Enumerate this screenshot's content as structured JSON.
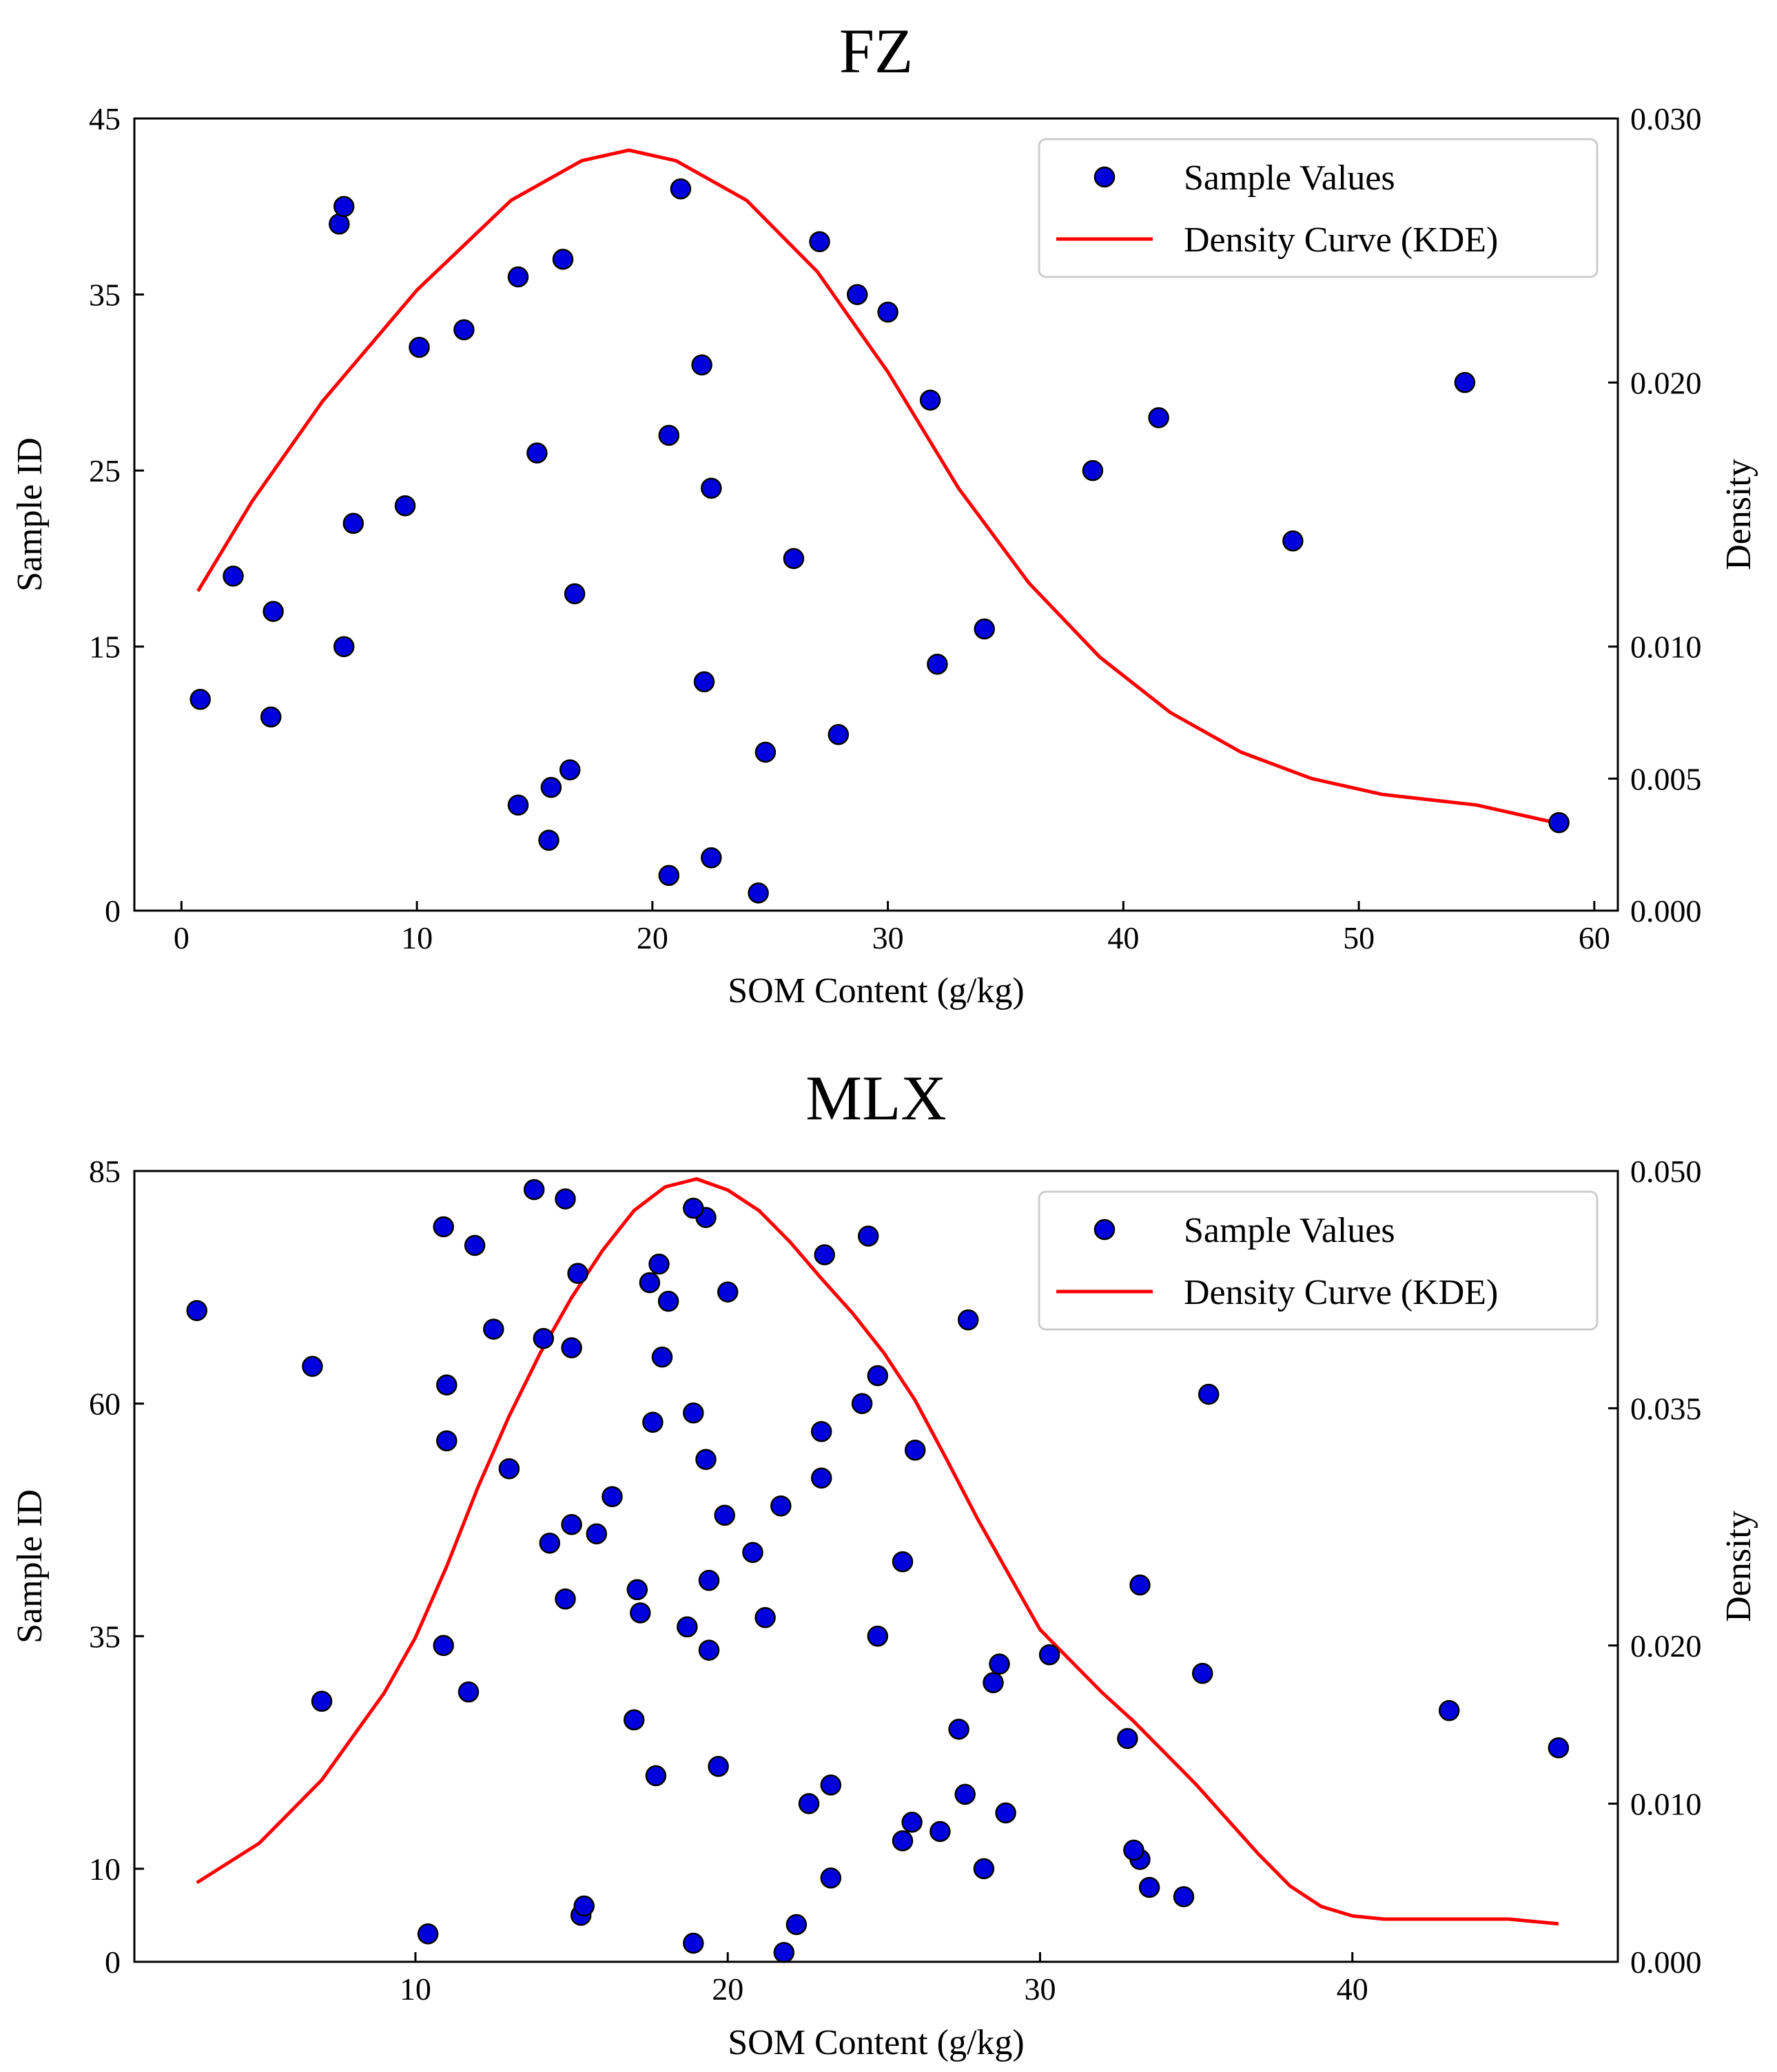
{
  "chart_data": [
    {
      "type": "scatter",
      "title": "FZ",
      "xlabel": "SOM Content (g/kg)",
      "ylabel": "Sample ID",
      "y2label": "Density",
      "xlim": [
        -2,
        61
      ],
      "ylim": [
        0,
        45
      ],
      "y2lim": [
        0,
        0.03
      ],
      "xticks": [
        0,
        10,
        20,
        30,
        40,
        50,
        60
      ],
      "yticks": [
        0,
        15,
        25,
        35,
        45
      ],
      "y2ticks": [
        "0.000",
        "0.005",
        "0.010",
        "0.020",
        "0.030"
      ],
      "legend": {
        "location": "top-right",
        "entries": [
          "Sample Values",
          "Density Curve (KDE)"
        ]
      },
      "colors": {
        "points": "#0000dd",
        "point_edge": "#000000",
        "curve": "#ff0000"
      },
      "series": [
        {
          "name": "Sample Values",
          "x": [
            24.5,
            20.7,
            22.5,
            15.6,
            14.3,
            15.7,
            16.5,
            24.8,
            27.9,
            3.8,
            0.8,
            22.2,
            32.1,
            6.9,
            34.1,
            3.9,
            16.7,
            2.2,
            26.0,
            47.2,
            7.3,
            9.5,
            22.5,
            38.7,
            15.1,
            20.7,
            41.5,
            31.8,
            54.5,
            22.1,
            10.1,
            12.0,
            30.0,
            28.7,
            14.3,
            16.2,
            27.1,
            6.7,
            6.9,
            21.2,
            58.5
          ],
          "y": [
            1,
            2,
            3,
            4,
            6,
            7,
            8,
            9,
            10,
            11,
            12,
            13,
            14,
            15,
            16,
            17,
            18,
            19,
            20,
            21,
            22,
            23,
            24,
            25,
            26,
            27,
            28,
            29,
            30,
            31,
            32,
            33,
            34,
            35,
            36,
            37,
            38,
            39,
            40,
            41,
            5
          ]
        },
        {
          "name": "Density Curve (KDE)",
          "x": [
            0.7,
            3,
            6,
            10,
            14,
            17,
            19,
            21,
            24,
            27,
            30,
            33,
            36,
            39,
            42,
            45,
            48,
            51,
            55,
            58.5
          ],
          "y": [
            0.0121,
            0.0155,
            0.0193,
            0.0235,
            0.0269,
            0.0284,
            0.0288,
            0.0284,
            0.0269,
            0.0242,
            0.0204,
            0.016,
            0.0124,
            0.0096,
            0.0075,
            0.006,
            0.005,
            0.0044,
            0.004,
            0.0033
          ]
        }
      ]
    },
    {
      "type": "scatter",
      "title": "MLX",
      "xlabel": "SOM Content (g/kg)",
      "ylabel": "Sample ID",
      "y2label": "Density",
      "xlim": [
        1,
        48.5
      ],
      "ylim": [
        0,
        85
      ],
      "y2lim": [
        0,
        0.05
      ],
      "xticks": [
        10,
        20,
        30,
        40
      ],
      "yticks": [
        0,
        10,
        35,
        60,
        85
      ],
      "y2ticks": [
        "0.000",
        "0.010",
        "0.020",
        "0.035",
        "0.050"
      ],
      "legend": {
        "location": "top-right",
        "entries": [
          "Sample Values",
          "Density Curve (KDE)"
        ]
      },
      "colors": {
        "points": "#0000dd",
        "point_edge": "#000000",
        "curve": "#ff0000"
      },
      "series": [
        {
          "name": "Sample Values",
          "x": [
            21.8,
            18.9,
            10.4,
            15.3,
            15.4,
            22.2,
            34.6,
            33.5,
            23.3,
            28.2,
            33.2,
            33.0,
            25.6,
            26.8,
            25.9,
            22.6,
            28.9,
            27.6,
            23.3,
            17.7,
            19.7,
            32.8,
            27.4,
            17.0,
            43.1,
            46.6,
            7.0,
            11.7,
            28.5,
            28.7,
            35.2,
            30.3,
            10.9,
            19.4,
            18.7,
            24.8,
            21.2,
            17.2,
            14.8,
            17.1,
            19.4,
            33.2,
            25.6,
            20.8,
            14.3,
            15.8,
            15.0,
            19.9,
            21.7,
            16.3,
            23.0,
            13.0,
            19.3,
            11.0,
            17.6,
            23.0,
            26.0,
            18.9,
            24.3,
            35.4,
            11.0,
            6.7,
            24.8,
            17.9,
            15.0,
            14.1,
            12.5,
            3.0,
            27.7,
            18.1,
            20.0,
            17.5,
            15.2,
            17.8,
            23.1,
            11.9,
            10.9,
            24.5,
            19.3,
            18.9,
            14.8,
            13.8
          ],
          "y": [
            1,
            2,
            3,
            5,
            6,
            4,
            7,
            8,
            9,
            10,
            11,
            12,
            13,
            14,
            15,
            17,
            16,
            18,
            19,
            20,
            21,
            24,
            25,
            26,
            27,
            23,
            28,
            29,
            30,
            32,
            31,
            33,
            34,
            33.5,
            36,
            35,
            37,
            37.5,
            39,
            40,
            41,
            40.5,
            43,
            44,
            45,
            46,
            47,
            48,
            49,
            50,
            52,
            53,
            54,
            56,
            58,
            57,
            55,
            59,
            60,
            61,
            62,
            64,
            63,
            65,
            66,
            67,
            68,
            70,
            69,
            71,
            72,
            73,
            74,
            75,
            76,
            77,
            79,
            78,
            80,
            81,
            82,
            83
          ]
        },
        {
          "name": "Density Curve (KDE)",
          "x": [
            3,
            5,
            7,
            9,
            10,
            11,
            12,
            13,
            14,
            15,
            16,
            17,
            18,
            19,
            20,
            21,
            22,
            23,
            24,
            25,
            26,
            27,
            28,
            29,
            30,
            31,
            32,
            33,
            34,
            35,
            36,
            37,
            38,
            39,
            40,
            41,
            42,
            43,
            44,
            45,
            46.6
          ],
          "y": [
            0.005,
            0.0075,
            0.0115,
            0.017,
            0.0205,
            0.025,
            0.03,
            0.0345,
            0.0385,
            0.042,
            0.045,
            0.0475,
            0.049,
            0.0495,
            0.0488,
            0.0475,
            0.0455,
            0.0432,
            0.041,
            0.0385,
            0.0355,
            0.0318,
            0.028,
            0.0245,
            0.021,
            0.019,
            0.017,
            0.0152,
            0.0132,
            0.0112,
            0.009,
            0.0068,
            0.0048,
            0.0035,
            0.0029,
            0.0027,
            0.0027,
            0.0027,
            0.0027,
            0.0027,
            0.0024
          ]
        }
      ]
    }
  ]
}
